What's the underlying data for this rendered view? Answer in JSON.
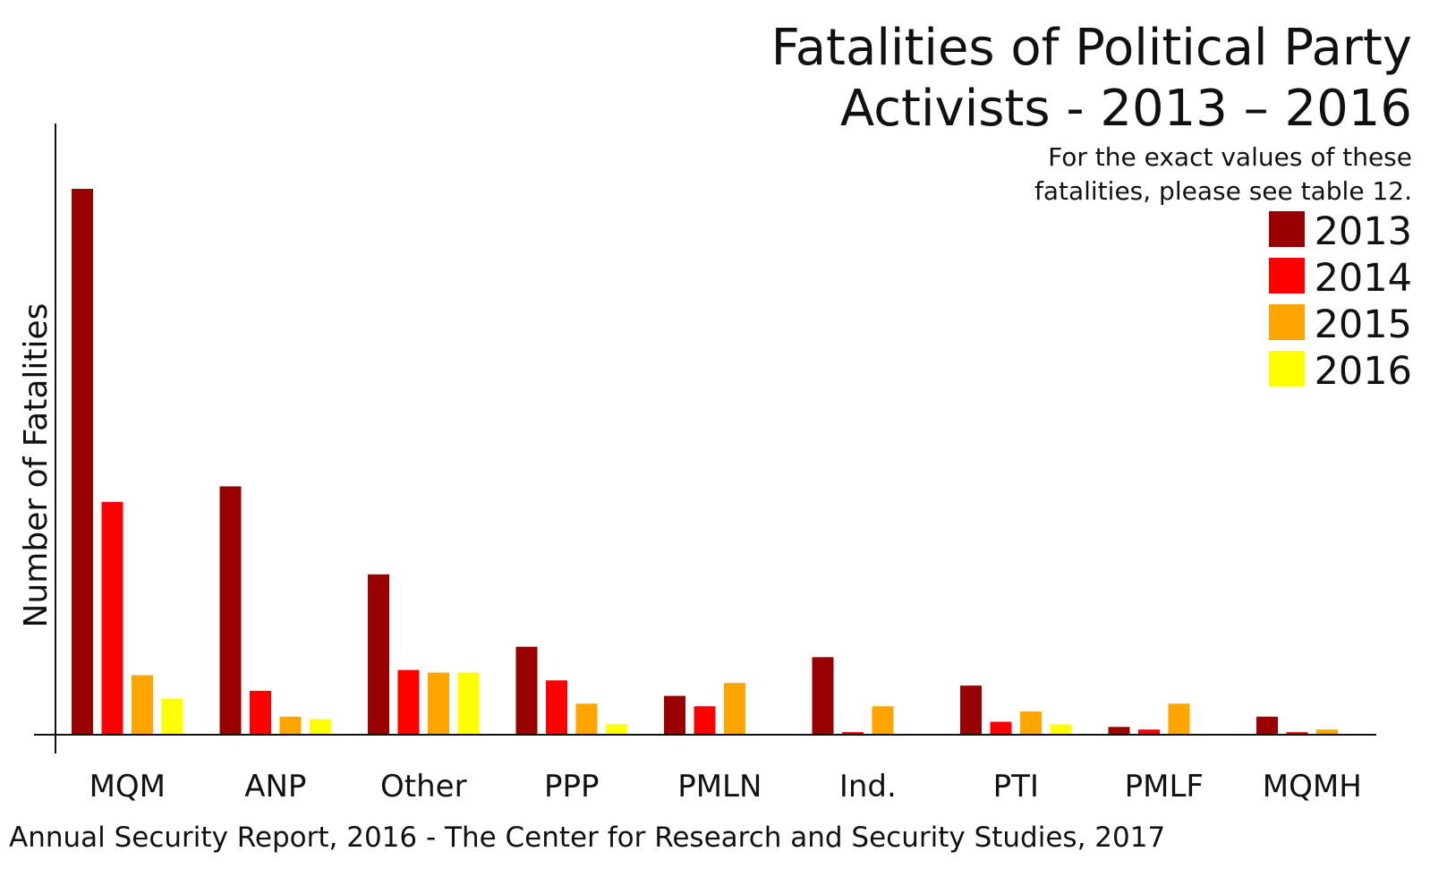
{
  "chart_data": {
    "type": "bar",
    "title_lines": [
      "Fatalities of Political Party",
      "Activists - 2013 – 2016"
    ],
    "subtitle_lines": [
      "For the exact values of these",
      "fatalities, please see table 12."
    ],
    "ylabel": "Number of Fatalities",
    "source": "Annual Security Report, 2016 - The Center for Research and Security Studies, 2017",
    "categories": [
      "MQM",
      "ANP",
      "Other",
      "PPP",
      "PMLN",
      "Ind.",
      "PTI",
      "PMLF",
      "MQMH"
    ],
    "series": [
      {
        "name": "2013",
        "color": "#990000",
        "values": [
          211,
          96,
          62,
          34,
          15,
          30,
          19,
          3,
          7
        ]
      },
      {
        "name": "2014",
        "color": "#ff0000",
        "values": [
          90,
          17,
          25,
          21,
          11,
          1,
          5,
          2,
          1
        ]
      },
      {
        "name": "2015",
        "color": "#ffa500",
        "values": [
          23,
          7,
          24,
          12,
          20,
          11,
          9,
          12,
          2
        ]
      },
      {
        "name": "2016",
        "color": "#ffff00",
        "values": [
          14,
          6,
          24,
          4,
          0,
          0,
          4,
          0,
          0
        ]
      }
    ],
    "ylim": [
      0,
      220
    ],
    "y_ticks_shown": false,
    "grid": false,
    "legend_position": "top-right"
  }
}
